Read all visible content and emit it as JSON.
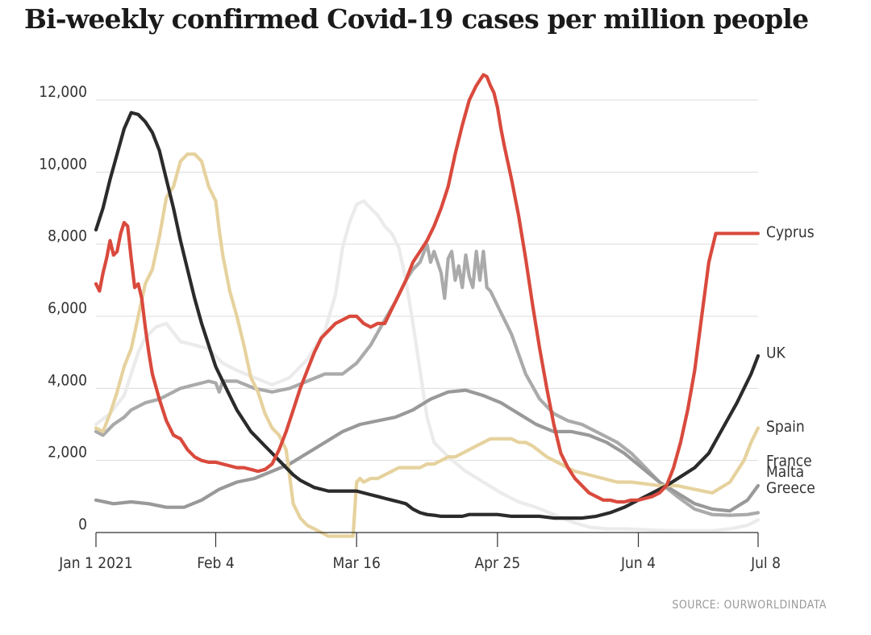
{
  "chart_data": {
    "type": "line",
    "title": "Bi-weekly confirmed Covid-19 cases per million people",
    "source": "SOURCE: OURWORLDINDATA",
    "xlabel": "",
    "ylabel": "",
    "x_range_days": [
      0,
      188
    ],
    "ylim": [
      0,
      12700
    ],
    "yticks": [
      {
        "value": 0,
        "label": "0"
      },
      {
        "value": 2000,
        "label": "2,000"
      },
      {
        "value": 4000,
        "label": "4,000"
      },
      {
        "value": 6000,
        "label": "6,000"
      },
      {
        "value": 8000,
        "label": "8,000"
      },
      {
        "value": 10000,
        "label": "10,000"
      },
      {
        "value": 12000,
        "label": "12,000"
      }
    ],
    "xticks": [
      {
        "day": 0,
        "label": "Jan 1 2021"
      },
      {
        "day": 34,
        "label": "Feb 4"
      },
      {
        "day": 74,
        "label": "Mar 16"
      },
      {
        "day": 114,
        "label": "Apr 25"
      },
      {
        "day": 154,
        "label": "Jun 4"
      },
      {
        "day": 188,
        "label": "Jul 8"
      }
    ],
    "series": [
      {
        "name": "Malta",
        "color": "#ebebeb",
        "label_y": 1700,
        "x": [
          0,
          4,
          8,
          12,
          14,
          17,
          20,
          24,
          28,
          32,
          36,
          40,
          45,
          50,
          55,
          60,
          65,
          68,
          70,
          72,
          74,
          76,
          78,
          80,
          82,
          84,
          86,
          88,
          90,
          92,
          94,
          96,
          100,
          105,
          110,
          115,
          120,
          125,
          130,
          135,
          140,
          145,
          150,
          155,
          160,
          165,
          170,
          175,
          180,
          185,
          188
        ],
        "y": [
          3000,
          3300,
          3800,
          5000,
          5400,
          5700,
          5800,
          5300,
          5200,
          5100,
          4700,
          4500,
          4300,
          4100,
          4300,
          4800,
          5600,
          6600,
          7900,
          8600,
          9100,
          9200,
          9000,
          8800,
          8500,
          8300,
          7900,
          7000,
          5800,
          4500,
          3200,
          2500,
          2100,
          1700,
          1400,
          1100,
          850,
          700,
          500,
          300,
          150,
          100,
          100,
          80,
          60,
          50,
          50,
          50,
          100,
          200,
          350
        ]
      },
      {
        "name": "France",
        "color": "#aaaaaa",
        "label_y": 2000,
        "x": [
          0,
          2,
          5,
          8,
          10,
          14,
          18,
          20,
          24,
          28,
          32,
          34,
          35,
          36,
          40,
          45,
          50,
          55,
          60,
          65,
          70,
          74,
          78,
          82,
          85,
          88,
          90,
          92,
          94,
          95,
          96,
          98,
          99,
          100,
          101,
          102,
          103,
          104,
          105,
          106,
          107,
          108,
          109,
          110,
          111,
          112,
          114,
          118,
          122,
          126,
          130,
          134,
          138,
          140,
          144,
          148,
          152,
          156,
          160,
          165,
          170,
          175,
          180,
          185,
          188
        ],
        "y": [
          2800,
          2700,
          3000,
          3200,
          3400,
          3600,
          3700,
          3800,
          4000,
          4100,
          4200,
          4150,
          3900,
          4200,
          4200,
          4000,
          3900,
          4000,
          4200,
          4400,
          4400,
          4700,
          5200,
          5900,
          6400,
          7000,
          7300,
          7500,
          8000,
          7500,
          7800,
          7200,
          6500,
          7600,
          7800,
          7000,
          7400,
          6800,
          7700,
          7100,
          6800,
          7800,
          7000,
          7800,
          6800,
          6700,
          6300,
          5500,
          4400,
          3700,
          3300,
          3100,
          3000,
          2900,
          2700,
          2500,
          2200,
          1800,
          1400,
          1000,
          650,
          500,
          480,
          500,
          550
        ]
      },
      {
        "name": "Greece",
        "color": "#999999",
        "label_y": 1250,
        "x": [
          0,
          5,
          10,
          15,
          20,
          25,
          30,
          35,
          40,
          45,
          50,
          55,
          60,
          65,
          70,
          75,
          80,
          85,
          90,
          95,
          100,
          105,
          110,
          115,
          120,
          125,
          130,
          135,
          140,
          145,
          150,
          155,
          160,
          165,
          170,
          175,
          180,
          185,
          188
        ],
        "y": [
          900,
          800,
          850,
          800,
          700,
          700,
          900,
          1200,
          1400,
          1500,
          1700,
          1900,
          2200,
          2500,
          2800,
          3000,
          3100,
          3200,
          3400,
          3700,
          3900,
          3950,
          3800,
          3600,
          3300,
          3000,
          2800,
          2800,
          2700,
          2500,
          2200,
          1800,
          1400,
          1100,
          800,
          650,
          600,
          900,
          1300
        ]
      },
      {
        "name": "Spain",
        "color": "#e6d29e",
        "label_y": 2950,
        "x": [
          0,
          2,
          4,
          6,
          8,
          10,
          12,
          14,
          16,
          18,
          20,
          22,
          24,
          26,
          28,
          30,
          32,
          33,
          34,
          35,
          36,
          38,
          40,
          42,
          44,
          46,
          48,
          50,
          52,
          54,
          56,
          58,
          60,
          62,
          64,
          66,
          68,
          70,
          72,
          73,
          74,
          75,
          76,
          78,
          80,
          82,
          84,
          86,
          88,
          90,
          92,
          94,
          96,
          98,
          100,
          102,
          104,
          106,
          108,
          110,
          112,
          114,
          116,
          118,
          120,
          122,
          124,
          128,
          132,
          136,
          140,
          144,
          148,
          152,
          156,
          160,
          165,
          170,
          175,
          180,
          184,
          186,
          188
        ],
        "y": [
          2900,
          2800,
          3300,
          3900,
          4600,
          5100,
          6000,
          6900,
          7300,
          8200,
          9300,
          9600,
          10300,
          10500,
          10500,
          10300,
          9600,
          9400,
          9200,
          8400,
          7700,
          6700,
          6000,
          5200,
          4300,
          3900,
          3300,
          2900,
          2700,
          2300,
          800,
          400,
          200,
          100,
          0,
          -100,
          -100,
          -100,
          -100,
          -100,
          1400,
          1500,
          1400,
          1500,
          1500,
          1600,
          1700,
          1800,
          1800,
          1800,
          1800,
          1900,
          1900,
          2000,
          2100,
          2100,
          2200,
          2300,
          2400,
          2500,
          2600,
          2600,
          2600,
          2600,
          2500,
          2500,
          2400,
          2100,
          1900,
          1700,
          1600,
          1500,
          1400,
          1400,
          1350,
          1300,
          1300,
          1200,
          1100,
          1400,
          2000,
          2500,
          2900
        ]
      },
      {
        "name": "UK",
        "color": "#2b2b2b",
        "label_y": 5000,
        "x": [
          0,
          2,
          4,
          6,
          8,
          10,
          12,
          14,
          16,
          18,
          20,
          22,
          24,
          26,
          28,
          30,
          32,
          34,
          36,
          38,
          40,
          42,
          44,
          46,
          48,
          50,
          52,
          54,
          56,
          58,
          60,
          62,
          64,
          66,
          68,
          70,
          72,
          74,
          76,
          78,
          80,
          82,
          84,
          86,
          88,
          90,
          92,
          94,
          96,
          98,
          100,
          102,
          104,
          106,
          108,
          110,
          112,
          114,
          118,
          122,
          126,
          130,
          134,
          138,
          142,
          146,
          150,
          154,
          158,
          162,
          166,
          170,
          174,
          178,
          182,
          186,
          188
        ],
        "y": [
          8400,
          9000,
          9800,
          10500,
          11200,
          11650,
          11600,
          11400,
          11100,
          10600,
          9800,
          9000,
          8100,
          7300,
          6500,
          5800,
          5200,
          4600,
          4200,
          3800,
          3400,
          3100,
          2800,
          2600,
          2400,
          2200,
          2000,
          1800,
          1600,
          1450,
          1350,
          1250,
          1200,
          1150,
          1150,
          1150,
          1150,
          1150,
          1100,
          1050,
          1000,
          950,
          900,
          850,
          800,
          650,
          550,
          500,
          480,
          450,
          450,
          450,
          450,
          500,
          500,
          500,
          500,
          500,
          450,
          450,
          450,
          400,
          400,
          400,
          450,
          550,
          700,
          900,
          1100,
          1300,
          1550,
          1800,
          2200,
          2900,
          3600,
          4400,
          4900
        ]
      },
      {
        "name": "Cyprus",
        "color": "#d94a3d",
        "label_y": 8350,
        "x": [
          0,
          1,
          2,
          3,
          4,
          5,
          6,
          7,
          8,
          9,
          10,
          11,
          12,
          13,
          14,
          15,
          16,
          18,
          20,
          22,
          24,
          26,
          28,
          30,
          32,
          34,
          36,
          38,
          40,
          42,
          44,
          46,
          48,
          50,
          52,
          54,
          56,
          58,
          60,
          62,
          64,
          66,
          68,
          70,
          72,
          74,
          76,
          78,
          80,
          82,
          84,
          86,
          88,
          90,
          92,
          94,
          96,
          98,
          100,
          102,
          104,
          106,
          108,
          110,
          111,
          112,
          113,
          114,
          115,
          116,
          118,
          120,
          122,
          124,
          126,
          128,
          130,
          132,
          134,
          136,
          138,
          140,
          142,
          144,
          146,
          148,
          150,
          152,
          154,
          156,
          158,
          160,
          162,
          164,
          166,
          168,
          170,
          172,
          174,
          176,
          178,
          180,
          182,
          184,
          186,
          188
        ],
        "y": [
          6900,
          6700,
          7200,
          7600,
          8100,
          7700,
          7800,
          8300,
          8600,
          8500,
          7600,
          6800,
          6900,
          6500,
          5700,
          5000,
          4400,
          3700,
          3100,
          2700,
          2600,
          2300,
          2100,
          2000,
          1950,
          1950,
          1900,
          1850,
          1800,
          1800,
          1750,
          1700,
          1750,
          1900,
          2300,
          2800,
          3400,
          4000,
          4500,
          5000,
          5400,
          5600,
          5800,
          5900,
          6000,
          6000,
          5800,
          5700,
          5800,
          5800,
          6200,
          6600,
          7000,
          7500,
          7800,
          8100,
          8500,
          9000,
          9600,
          10500,
          11300,
          12000,
          12400,
          12700,
          12650,
          12400,
          12200,
          11800,
          11200,
          10700,
          9800,
          8800,
          7600,
          6300,
          5100,
          4000,
          3000,
          2200,
          1800,
          1500,
          1300,
          1100,
          1000,
          900,
          900,
          850,
          850,
          900,
          900,
          950,
          1000,
          1100,
          1300,
          1800,
          2500,
          3400,
          4500,
          6000,
          7500,
          8300,
          8300,
          8300,
          8300,
          8300,
          8300,
          8300
        ]
      }
    ]
  }
}
